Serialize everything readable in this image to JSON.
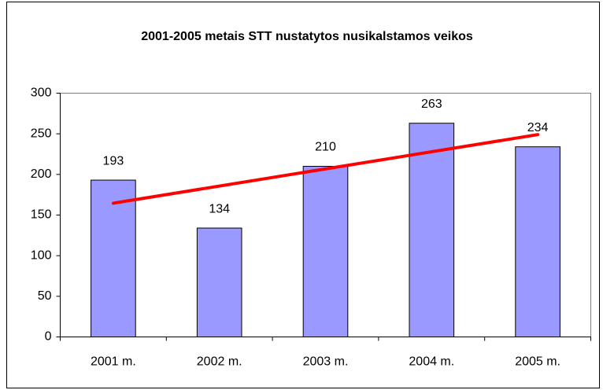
{
  "chart_data": {
    "type": "bar",
    "title": "2001-2005 metais STT nustatytos nusikalstamos veikos",
    "categories": [
      "2001 m.",
      "2002 m.",
      "2003 m.",
      "2004 m.",
      "2005 m."
    ],
    "values": [
      193,
      134,
      210,
      263,
      234
    ],
    "color": "#9999ff",
    "ylim": [
      0,
      300
    ],
    "yticks": [
      0,
      50,
      100,
      150,
      200,
      250,
      300
    ],
    "grid": false,
    "trendline": {
      "type": "linear",
      "color": "#ff0000"
    }
  }
}
